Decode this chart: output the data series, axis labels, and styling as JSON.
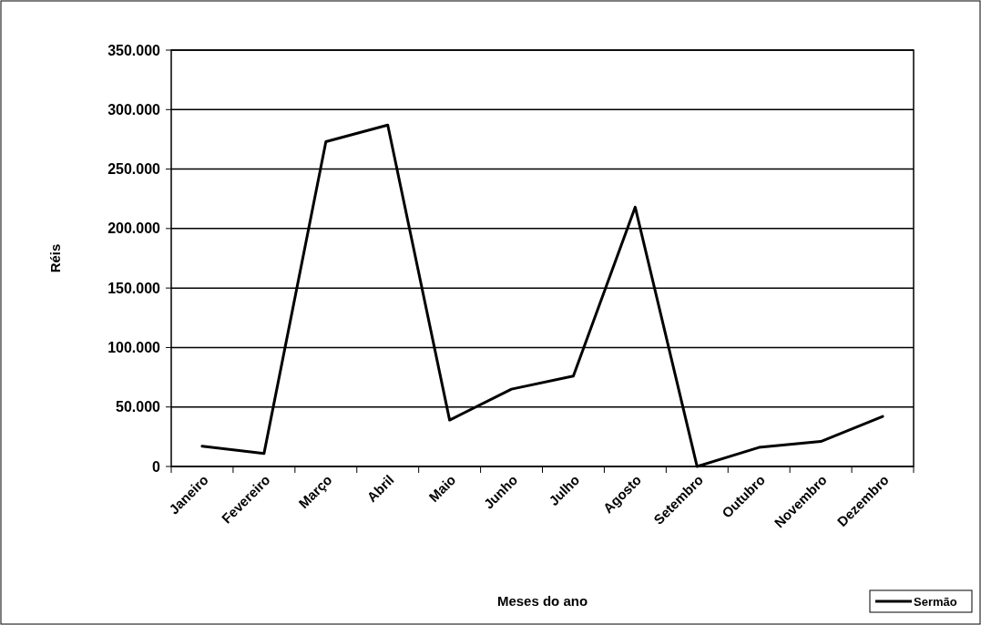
{
  "chart_data": {
    "type": "line",
    "xlabel": "Meses do ano",
    "ylabel": "Réis",
    "categories": [
      "Janeiro",
      "Fevereiro",
      "Março",
      "Abril",
      "Maio",
      "Junho",
      "Julho",
      "Agosto",
      "Setembro",
      "Outubro",
      "Novembro",
      "Dezembro"
    ],
    "series": [
      {
        "name": "Sermão",
        "color": "#000000",
        "values": [
          17000,
          11000,
          273000,
          287000,
          39000,
          65000,
          76000,
          218000,
          0,
          16000,
          21000,
          42000
        ]
      }
    ],
    "ylim": [
      0,
      350000
    ],
    "yticks": [
      {
        "value": 0,
        "label": "0"
      },
      {
        "value": 50000,
        "label": "50.000"
      },
      {
        "value": 100000,
        "label": "100.000"
      },
      {
        "value": 150000,
        "label": "150.000"
      },
      {
        "value": 200000,
        "label": "200.000"
      },
      {
        "value": 250000,
        "label": "250.000"
      },
      {
        "value": 300000,
        "label": "300.000"
      },
      {
        "value": 350000,
        "label": "350.000"
      }
    ],
    "grid": "y",
    "legend": "bottom right",
    "marker": "none",
    "line_style": "solid"
  }
}
